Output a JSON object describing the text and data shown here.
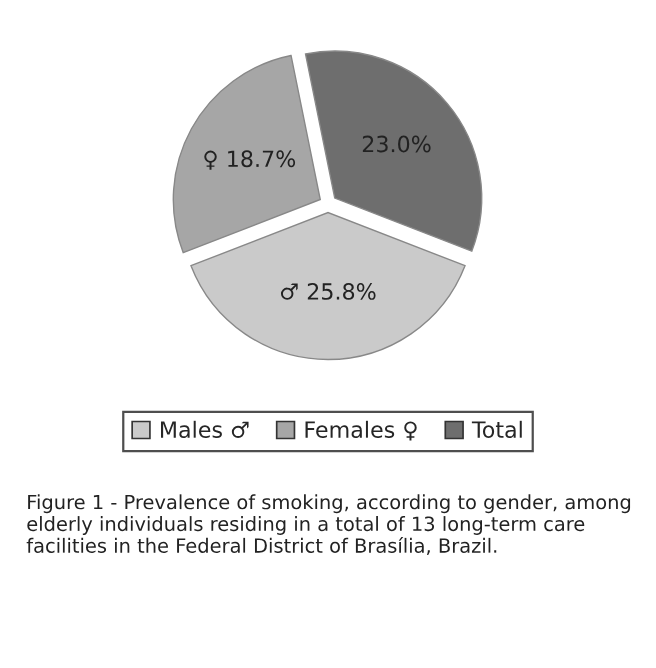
{
  "chart_data": {
    "type": "pie",
    "categories": [
      "Males ♂",
      "Females ♀",
      "Total"
    ],
    "values": [
      25.8,
      18.7,
      23.0
    ],
    "value_labels": [
      "♂ 25.8%",
      "♀ 18.7%",
      "23.0%"
    ],
    "colors": [
      "#cacaca",
      "#a6a6a6",
      "#6e6e6e"
    ],
    "legend": "bottom",
    "annotations": [
      "Figure 1 - Prevalence of smoking, according to gender, among elderly individuals residing in a total of 13 long-term care facilities in the Federal District of Brasília, Brazil."
    ]
  }
}
